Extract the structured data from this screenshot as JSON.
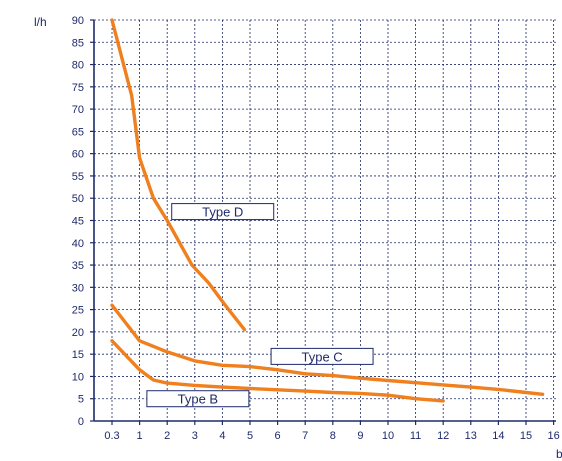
{
  "chart_data": {
    "type": "line",
    "title": "",
    "ylabel": "l/h",
    "xlabel": "b",
    "x_ticks": [
      "0.3",
      "1",
      "2",
      "3",
      "4",
      "5",
      "6",
      "7",
      "8",
      "9",
      "10",
      "11",
      "12",
      "13",
      "14",
      "15",
      "16"
    ],
    "y_ticks": [
      0,
      5,
      10,
      15,
      20,
      25,
      30,
      35,
      40,
      45,
      50,
      55,
      60,
      65,
      70,
      75,
      80,
      85,
      90
    ],
    "ylim": [
      0,
      90
    ],
    "grid": true,
    "colors": {
      "series": "#f07f1e",
      "axis": "#1f2a6b",
      "grid": "#1f2a6b"
    },
    "series": [
      {
        "name": "Type D",
        "points": [
          [
            0.3,
            90
          ],
          [
            0.8,
            73
          ],
          [
            1.0,
            59
          ],
          [
            1.5,
            50
          ],
          [
            2.0,
            45
          ],
          [
            2.9,
            35
          ],
          [
            3.5,
            31
          ],
          [
            4.1,
            26
          ],
          [
            4.8,
            20.5
          ]
        ]
      },
      {
        "name": "Type C",
        "points": [
          [
            0.3,
            26
          ],
          [
            1.0,
            18
          ],
          [
            2.0,
            15.5
          ],
          [
            3.0,
            13.5
          ],
          [
            4.0,
            12.5
          ],
          [
            5.0,
            12.2
          ],
          [
            6.0,
            11.5
          ],
          [
            7.0,
            10.6
          ],
          [
            8.0,
            10.2
          ],
          [
            9.0,
            9.6
          ],
          [
            10.0,
            9.1
          ],
          [
            11.0,
            8.6
          ],
          [
            12.0,
            8.1
          ],
          [
            13.0,
            7.6
          ],
          [
            14.0,
            7.1
          ],
          [
            15.0,
            6.4
          ],
          [
            15.6,
            6
          ]
        ]
      },
      {
        "name": "Type B",
        "points": [
          [
            0.3,
            18
          ],
          [
            1.0,
            11.5
          ],
          [
            1.5,
            9.2
          ],
          [
            2.0,
            8.5
          ],
          [
            3.0,
            8.0
          ],
          [
            4.0,
            7.6
          ],
          [
            5.0,
            7.3
          ],
          [
            6.0,
            7.0
          ],
          [
            7.0,
            6.7
          ],
          [
            8.0,
            6.4
          ],
          [
            9.0,
            6.2
          ],
          [
            10.0,
            5.8
          ],
          [
            11.0,
            5.0
          ],
          [
            12.0,
            4.5
          ]
        ]
      }
    ],
    "labels": [
      {
        "text": "Type D",
        "x": 2.2,
        "y": 47
      },
      {
        "text": "Type C",
        "x": 5.8,
        "y": 14.5
      },
      {
        "text": "Type B",
        "x": 1.3,
        "y": 5
      }
    ]
  }
}
